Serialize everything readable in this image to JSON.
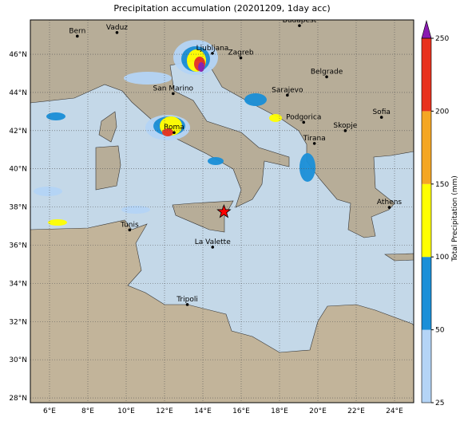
{
  "title": "Precipitation accumulation (20201209, 1day acc)",
  "axes": {
    "xlim": [
      5,
      25
    ],
    "ylim": [
      27.75,
      47.8
    ],
    "xticks": [
      {
        "value": 6,
        "label": "6°E"
      },
      {
        "value": 8,
        "label": "8°E"
      },
      {
        "value": 10,
        "label": "10°E"
      },
      {
        "value": 12,
        "label": "12°E"
      },
      {
        "value": 14,
        "label": "14°E"
      },
      {
        "value": 16,
        "label": "16°E"
      },
      {
        "value": 18,
        "label": "18°E"
      },
      {
        "value": 20,
        "label": "20°E"
      },
      {
        "value": 22,
        "label": "22°E"
      },
      {
        "value": 24,
        "label": "24°E"
      }
    ],
    "yticks": [
      {
        "value": 28,
        "label": "28°N"
      },
      {
        "value": 30,
        "label": "30°N"
      },
      {
        "value": 32,
        "label": "32°N"
      },
      {
        "value": 34,
        "label": "34°N"
      },
      {
        "value": 36,
        "label": "36°N"
      },
      {
        "value": 38,
        "label": "38°N"
      },
      {
        "value": 40,
        "label": "40°N"
      },
      {
        "value": 42,
        "label": "42°N"
      },
      {
        "value": 44,
        "label": "44°N"
      },
      {
        "value": 46,
        "label": "46°N"
      }
    ]
  },
  "cities": [
    {
      "name": "Bern",
      "lon": 7.45,
      "lat": 46.95
    },
    {
      "name": "Vaduz",
      "lon": 9.52,
      "lat": 47.14
    },
    {
      "name": "Budapest",
      "lon": 19.04,
      "lat": 47.5
    },
    {
      "name": "Ljubljana",
      "lon": 14.5,
      "lat": 46.05
    },
    {
      "name": "Zagreb",
      "lon": 15.98,
      "lat": 45.81
    },
    {
      "name": "Belgrade",
      "lon": 20.46,
      "lat": 44.82
    },
    {
      "name": "San Marino",
      "lon": 12.45,
      "lat": 43.94
    },
    {
      "name": "Sarajevo",
      "lon": 18.41,
      "lat": 43.86
    },
    {
      "name": "Sofia",
      "lon": 23.32,
      "lat": 42.7
    },
    {
      "name": "Podgorica",
      "lon": 19.26,
      "lat": 42.44
    },
    {
      "name": "Skopje",
      "lon": 21.43,
      "lat": 42.0
    },
    {
      "name": "Roma",
      "lon": 12.5,
      "lat": 41.9
    },
    {
      "name": "Tirana",
      "lon": 19.82,
      "lat": 41.33
    },
    {
      "name": "Athens",
      "lon": 23.73,
      "lat": 37.98
    },
    {
      "name": "Tunis",
      "lon": 10.18,
      "lat": 36.8
    },
    {
      "name": "La Valette",
      "lon": 14.51,
      "lat": 35.9
    },
    {
      "name": "Tripoli",
      "lon": 13.19,
      "lat": 32.89
    }
  ],
  "marker": {
    "lon": 15.1,
    "lat": 37.75,
    "color": "#ff0000"
  },
  "colorbar": {
    "label": "Total Precipitation (mm)",
    "ticks": [
      25,
      50,
      100,
      150,
      200,
      250
    ],
    "colors": [
      "#b4d4f6",
      "#1a8fd8",
      "#ffff00",
      "#f5a623",
      "#e8321e"
    ],
    "extend_color": "#8a1ab0"
  }
}
